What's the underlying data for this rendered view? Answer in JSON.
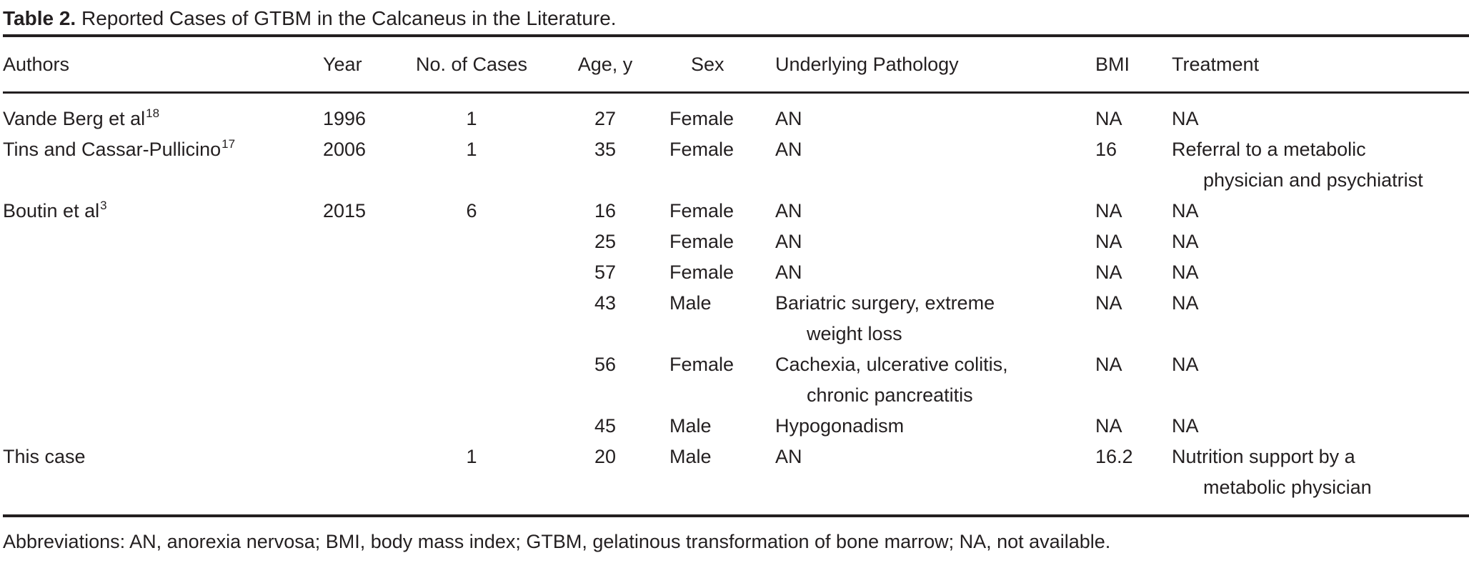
{
  "title": {
    "label": "Table 2.",
    "text": "Reported Cases of GTBM in the Calcaneus in the Literature."
  },
  "table": {
    "headers": {
      "authors": "Authors",
      "year": "Year",
      "cases": "No. of Cases",
      "age": "Age, y",
      "sex": "Sex",
      "pathology": "Underlying Pathology",
      "bmi": "BMI",
      "treatment": "Treatment"
    },
    "rows": [
      {
        "authors": "Vande Berg et al",
        "ref": "18",
        "year": "1996",
        "cases": "1",
        "age": "27",
        "sex": "Female",
        "pathology": "AN",
        "bmi": "NA",
        "treatment": "NA"
      },
      {
        "authors": "Tins and Cassar-Pullicino",
        "ref": "17",
        "year": "2006",
        "cases": "1",
        "age": "35",
        "sex": "Female",
        "pathology": "AN",
        "bmi": "16",
        "treatment": "Referral to a metabolic\nphysician and psychiatrist"
      },
      {
        "authors": "Boutin et al",
        "ref": "3",
        "year": "2015",
        "cases": "6",
        "age": "16",
        "sex": "Female",
        "pathology": "AN",
        "bmi": "NA",
        "treatment": "NA"
      },
      {
        "age": "25",
        "sex": "Female",
        "pathology": "AN",
        "bmi": "NA",
        "treatment": "NA"
      },
      {
        "age": "57",
        "sex": "Female",
        "pathology": "AN",
        "bmi": "NA",
        "treatment": "NA"
      },
      {
        "age": "43",
        "sex": "Male",
        "pathology": "Bariatric surgery, extreme\nweight loss",
        "bmi": "NA",
        "treatment": "NA"
      },
      {
        "age": "56",
        "sex": "Female",
        "pathology": "Cachexia, ulcerative colitis,\nchronic pancreatitis",
        "bmi": "NA",
        "treatment": "NA"
      },
      {
        "age": "45",
        "sex": "Male",
        "pathology": "Hypogonadism",
        "bmi": "NA",
        "treatment": "NA"
      },
      {
        "authors": "This case",
        "cases": "1",
        "age": "20",
        "sex": "Male",
        "pathology": "AN",
        "bmi": "16.2",
        "treatment": "Nutrition support by a\nmetabolic physician"
      }
    ]
  },
  "footnote": "Abbreviations: AN, anorexia nervosa; BMI, body mass index; GTBM, gelatinous transformation of bone marrow; NA, not available.",
  "colors": {
    "text": "#231f20",
    "rule": "#231f20",
    "background": "#ffffff"
  }
}
